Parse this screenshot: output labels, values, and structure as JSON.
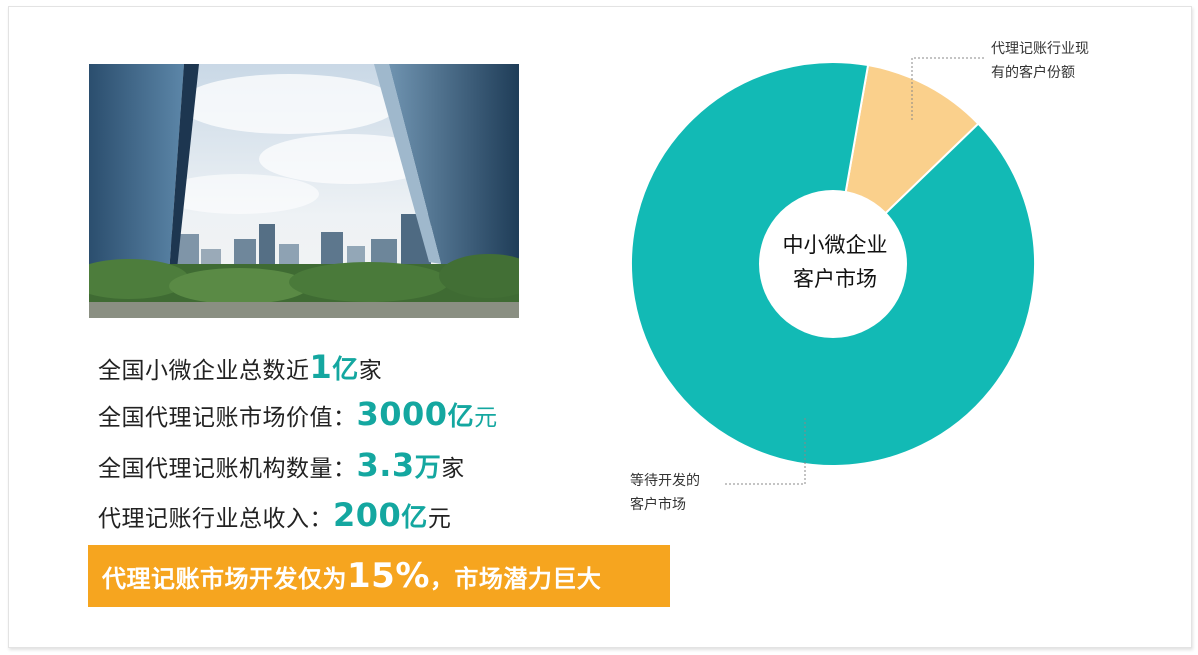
{
  "chart_data": {
    "type": "pie",
    "title": "",
    "center_label": [
      "中小微企业",
      "客户市场"
    ],
    "slices": [
      {
        "label": "代理记账行业现有的客户份额",
        "label_lines": [
          "代理记账行业现",
          "有的客户份额"
        ],
        "value": 10,
        "color": "#fad08c"
      },
      {
        "label": "等待开发的客户市场",
        "label_lines": [
          "等待开发的",
          "客户市场"
        ],
        "value": 90,
        "color": "#12bab5"
      }
    ]
  },
  "stats": [
    {
      "prefix": "全国小微企业总数近",
      "value": "1",
      "unit_big": "亿",
      "unit_small": "家"
    },
    {
      "prefix": "全国代理记账市场价值：",
      "value": "3000",
      "unit_big": "亿",
      "unit_small": "元"
    },
    {
      "prefix": "全国代理记账机构数量：",
      "value": "3.3",
      "unit_big": "万",
      "unit_small": "家"
    },
    {
      "prefix": "代理记账行业总收入：",
      "value": "200",
      "unit_big": "亿",
      "unit_small": "元"
    }
  ],
  "banner": {
    "prefix": "代理记账市场开发仅为",
    "value": "15%",
    "suffix": "，市场潜力巨大"
  },
  "colors": {
    "accent": "#14a7a0",
    "banner": "#f6a51f",
    "donut_main": "#12bab5",
    "donut_minor": "#fad08c"
  }
}
